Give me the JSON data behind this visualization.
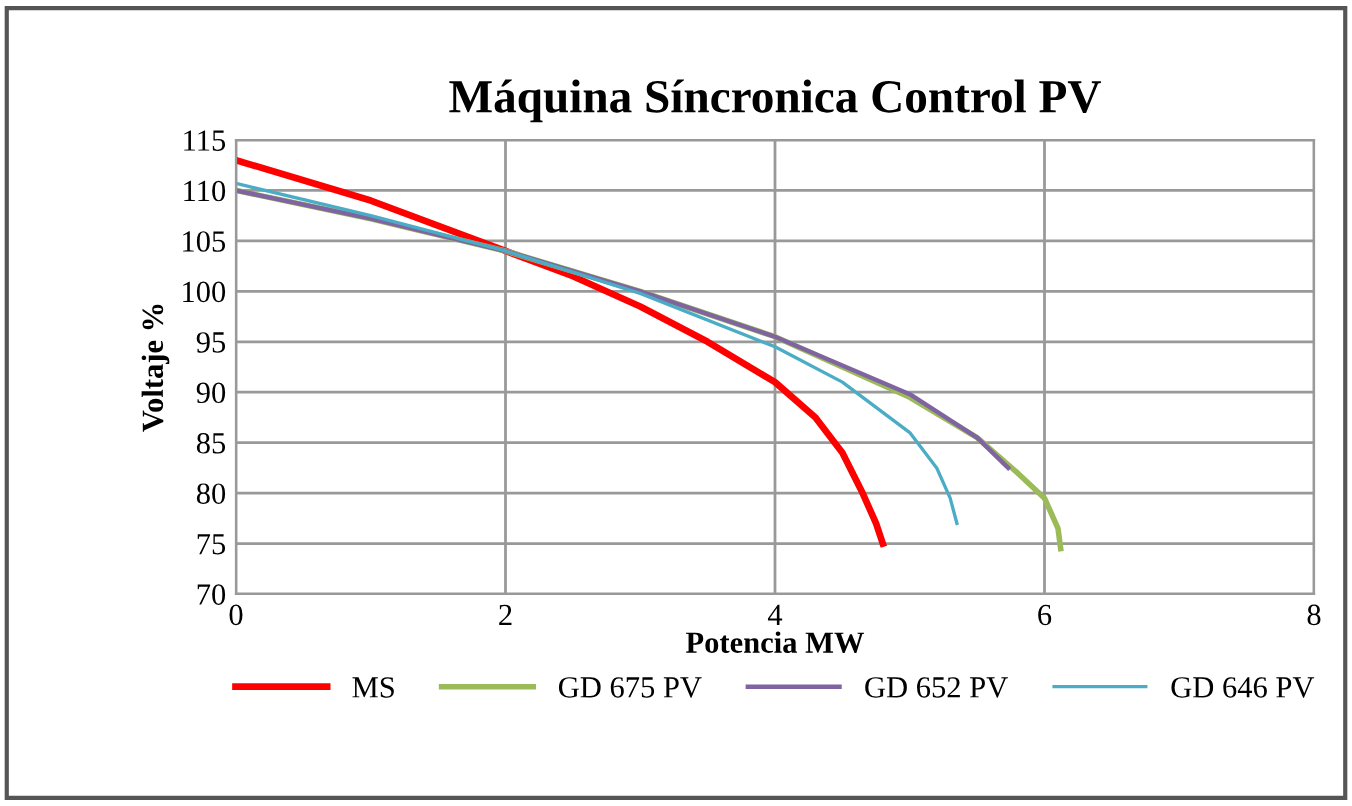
{
  "chart_data": {
    "type": "line",
    "title": "Máquina Síncronica Control PV",
    "xlabel": "Potencia MW",
    "ylabel": "Voltaje %",
    "xlim": [
      0,
      8
    ],
    "xticks": [
      0,
      2,
      4,
      6,
      8
    ],
    "ylim": [
      70,
      115
    ],
    "yticks": [
      70,
      75,
      80,
      85,
      90,
      95,
      100,
      105,
      110,
      115
    ],
    "grid": true,
    "legend": "bottom",
    "marker": "none",
    "line_style": "solid",
    "series": [
      {
        "name": "MS",
        "color": "#ff0000",
        "x": [
          0,
          1,
          2,
          2.5,
          3,
          3.5,
          4,
          4.3,
          4.5,
          4.65,
          4.75,
          4.8
        ],
        "values": [
          113,
          109,
          104,
          101.5,
          98.5,
          95,
          91,
          87.5,
          84,
          80,
          77,
          75
        ]
      },
      {
        "name": "GD 675 PV",
        "color": "#9bbb59",
        "x": [
          0,
          1,
          2,
          3,
          4,
          5,
          5.5,
          5.8,
          6,
          6.1,
          6.12
        ],
        "values": [
          110,
          107.2,
          104,
          100,
          95.5,
          89.5,
          85.5,
          82,
          79.5,
          76.5,
          74.5
        ]
      },
      {
        "name": "GD 652 PV",
        "color": "#8064a2",
        "x": [
          0,
          1,
          2,
          3,
          4,
          5,
          5.5,
          5.73
        ],
        "values": [
          110,
          107.2,
          104,
          100,
          95.5,
          89.8,
          85.5,
          82.5
        ]
      },
      {
        "name": "GD 646 PV",
        "color": "#4bacc6",
        "x": [
          0,
          1,
          2,
          3,
          4,
          4.5,
          5,
          5.2,
          5.3,
          5.35
        ],
        "values": [
          110.7,
          107.5,
          104,
          99.8,
          94.5,
          91,
          86,
          82.5,
          79.5,
          77
        ]
      }
    ]
  }
}
